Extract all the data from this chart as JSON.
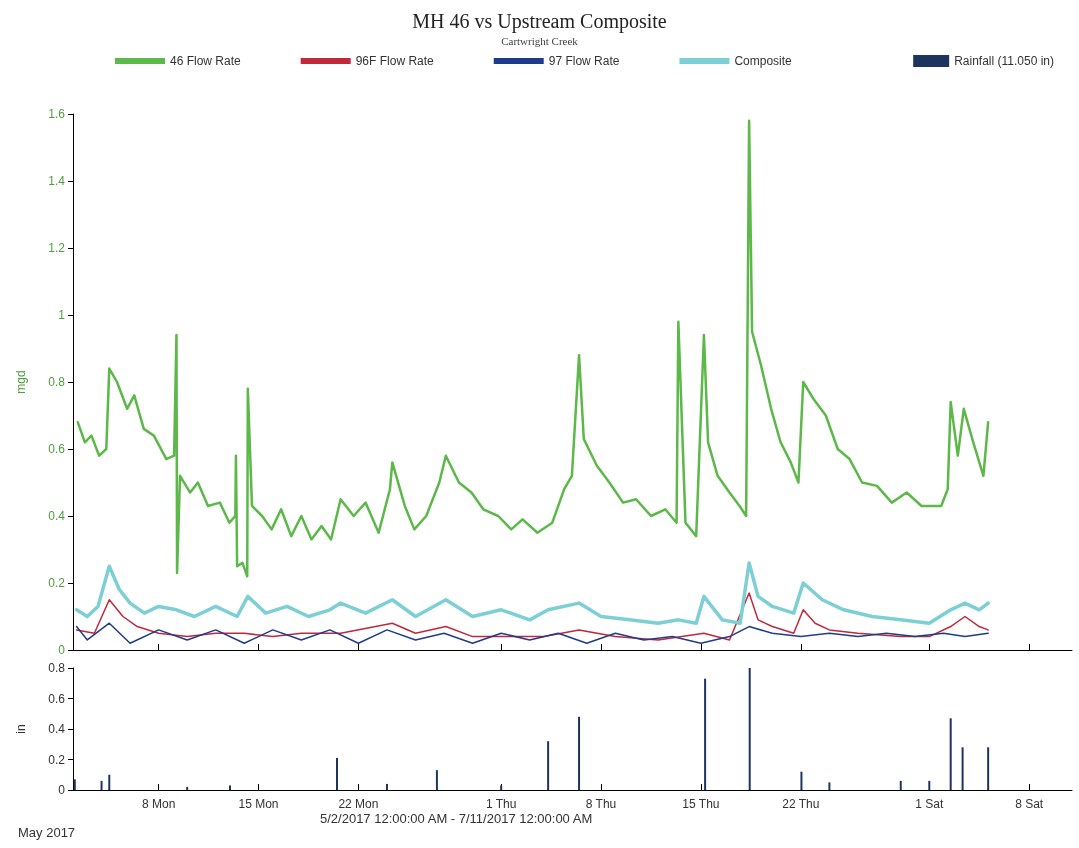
{
  "chart_data": [
    {
      "type": "line",
      "title": "MH 46 vs Upstream Composite",
      "subtitle": "Cartwright Creek",
      "ylabel": "mgd",
      "xlim": [
        "2017-05-02",
        "2017-07-11"
      ],
      "xticks": [
        {
          "value": "2017-05-08",
          "label": null
        },
        {
          "value": "2017-05-15",
          "label": null
        },
        {
          "value": "2017-05-22",
          "label": null
        },
        {
          "value": "2017-06-01",
          "label": null
        },
        {
          "value": "2017-06-08",
          "label": null
        },
        {
          "value": "2017-06-15",
          "label": null
        },
        {
          "value": "2017-06-22",
          "label": null
        },
        {
          "value": "2017-07-01",
          "label": null
        },
        {
          "value": "2017-07-08",
          "label": null
        }
      ],
      "ylim": [
        0,
        1.6
      ],
      "yticks": [
        0,
        0.2,
        0.4,
        0.6,
        0.8,
        1.0,
        1.2,
        1.4,
        1.6
      ],
      "tick_labels": "y",
      "grid": false,
      "legend": "top",
      "marker": "none",
      "line_style": "solid",
      "series": [
        {
          "name": "46 Flow Rate",
          "color": "#5cb848",
          "x": [
            "2017-05-02T08:00",
            "2017-05-02T20:00",
            "2017-05-03T07:00",
            "2017-05-03T20:00",
            "2017-05-04T08:00",
            "2017-05-04T13:00",
            "2017-05-05T02:00",
            "2017-05-05T19:00",
            "2017-05-06T07:00",
            "2017-05-06T23:00",
            "2017-05-07T16:00",
            "2017-05-08T13:00",
            "2017-05-09T02:00",
            "2017-05-09T06:00",
            "2017-05-09T07:00",
            "2017-05-09T12:00",
            "2017-05-10T05:00",
            "2017-05-10T18:00",
            "2017-05-11T11:00",
            "2017-05-12T07:00",
            "2017-05-12T23:00",
            "2017-05-13T09:00",
            "2017-05-13T10:00",
            "2017-05-13T12:00",
            "2017-05-13T21:00",
            "2017-05-14T05:00",
            "2017-05-14T06:00",
            "2017-05-14T13:00",
            "2017-05-15T06:00",
            "2017-05-15T22:00",
            "2017-05-16T14:00",
            "2017-05-17T07:00",
            "2017-05-18T00:00",
            "2017-05-18T17:00",
            "2017-05-19T10:00",
            "2017-05-20T02:00",
            "2017-05-20T18:00",
            "2017-05-21T16:00",
            "2017-05-22T12:00",
            "2017-05-23T10:00",
            "2017-05-24T05:00",
            "2017-05-24T09:00",
            "2017-05-25T06:00",
            "2017-05-25T22:00",
            "2017-05-26T18:00",
            "2017-05-27T16:00",
            "2017-05-28T03:00",
            "2017-05-29T01:00",
            "2017-05-29T22:00",
            "2017-05-30T18:00",
            "2017-05-31T19:00",
            "2017-06-01T17:00",
            "2017-06-02T12:00",
            "2017-06-03T13:00",
            "2017-06-04T14:00",
            "2017-06-05T10:00",
            "2017-06-05T23:00",
            "2017-06-06T11:00",
            "2017-06-06T19:00",
            "2017-06-07T17:00",
            "2017-06-08T14:00",
            "2017-06-09T13:00",
            "2017-06-10T11:00",
            "2017-06-11T12:00",
            "2017-06-12T12:00",
            "2017-06-13T07:00",
            "2017-06-13T10:00",
            "2017-06-13T22:00",
            "2017-06-14T16:00",
            "2017-06-15T05:00",
            "2017-06-15T12:00",
            "2017-06-16T04:00",
            "2017-06-17T00:00",
            "2017-06-17T17:00",
            "2017-06-18T04:00",
            "2017-06-18T09:00",
            "2017-06-18T14:00",
            "2017-06-19T05:00",
            "2017-06-19T22:00",
            "2017-06-20T14:00",
            "2017-06-21T07:00",
            "2017-06-21T20:00",
            "2017-06-22T04:00",
            "2017-06-22T21:00",
            "2017-06-23T18:00",
            "2017-06-24T14:00",
            "2017-06-25T10:00",
            "2017-06-26T07:00",
            "2017-06-27T08:00",
            "2017-06-28T09:00",
            "2017-06-29T10:00",
            "2017-06-30T11:00",
            "2017-07-01T20:00",
            "2017-07-02T07:00",
            "2017-07-02T12:00",
            "2017-07-03T00:00",
            "2017-07-03T10:00",
            "2017-07-04T02:00",
            "2017-07-04T19:00",
            "2017-07-05T03:00"
          ],
          "values": [
            0.68,
            0.62,
            0.64,
            0.58,
            0.6,
            0.84,
            0.8,
            0.72,
            0.76,
            0.66,
            0.64,
            0.57,
            0.58,
            0.94,
            0.23,
            0.52,
            0.47,
            0.5,
            0.43,
            0.44,
            0.38,
            0.4,
            0.58,
            0.25,
            0.26,
            0.22,
            0.78,
            0.43,
            0.4,
            0.36,
            0.42,
            0.34,
            0.4,
            0.33,
            0.37,
            0.33,
            0.45,
            0.4,
            0.44,
            0.35,
            0.48,
            0.56,
            0.43,
            0.36,
            0.4,
            0.5,
            0.58,
            0.5,
            0.47,
            0.42,
            0.4,
            0.36,
            0.39,
            0.35,
            0.38,
            0.48,
            0.52,
            0.88,
            0.63,
            0.55,
            0.5,
            0.44,
            0.45,
            0.4,
            0.42,
            0.38,
            0.98,
            0.38,
            0.34,
            0.94,
            0.62,
            0.52,
            0.47,
            0.43,
            0.4,
            1.58,
            0.95,
            0.85,
            0.72,
            0.62,
            0.56,
            0.5,
            0.8,
            0.75,
            0.7,
            0.6,
            0.57,
            0.5,
            0.49,
            0.44,
            0.47,
            0.43,
            0.43,
            0.48,
            0.74,
            0.58,
            0.72,
            0.62,
            0.52,
            0.68
          ]
        },
        {
          "name": "96F Flow Rate",
          "color": "#c0283c",
          "x": [
            "2017-05-02T06:00",
            "2017-05-03T12:00",
            "2017-05-04T13:00",
            "2017-05-05T12:00",
            "2017-05-06T12:00",
            "2017-05-08T00:00",
            "2017-05-10T00:00",
            "2017-05-12T00:00",
            "2017-05-14T00:00",
            "2017-05-16T00:00",
            "2017-05-18T00:00",
            "2017-05-20T18:00",
            "2017-05-24T09:00",
            "2017-05-26T00:00",
            "2017-05-28T03:00",
            "2017-05-30T00:00",
            "2017-06-01T00:00",
            "2017-06-04T00:00",
            "2017-06-06T11:00",
            "2017-06-09T00:00",
            "2017-06-12T00:00",
            "2017-06-15T05:00",
            "2017-06-17T00:00",
            "2017-06-18T09:00",
            "2017-06-19T00:00",
            "2017-06-20T00:00",
            "2017-06-21T12:00",
            "2017-06-22T04:00",
            "2017-06-23T00:00",
            "2017-06-24T00:00",
            "2017-06-26T00:00",
            "2017-06-29T00:00",
            "2017-07-01T00:00",
            "2017-07-02T12:00",
            "2017-07-03T12:00",
            "2017-07-04T12:00",
            "2017-07-05T03:00"
          ],
          "values": [
            0.06,
            0.05,
            0.15,
            0.1,
            0.07,
            0.05,
            0.04,
            0.05,
            0.05,
            0.04,
            0.05,
            0.05,
            0.08,
            0.05,
            0.07,
            0.04,
            0.04,
            0.04,
            0.06,
            0.04,
            0.03,
            0.05,
            0.03,
            0.17,
            0.09,
            0.07,
            0.05,
            0.12,
            0.08,
            0.06,
            0.05,
            0.04,
            0.04,
            0.07,
            0.1,
            0.07,
            0.06
          ]
        },
        {
          "name": "97 Flow Rate",
          "color": "#1f3c8c",
          "x": [
            "2017-05-02T06:00",
            "2017-05-03T00:00",
            "2017-05-04T13:00",
            "2017-05-06T00:00",
            "2017-05-08T00:00",
            "2017-05-10T00:00",
            "2017-05-12T00:00",
            "2017-05-14T00:00",
            "2017-05-16T00:00",
            "2017-05-18T00:00",
            "2017-05-20T00:00",
            "2017-05-22T00:00",
            "2017-05-24T00:00",
            "2017-05-26T00:00",
            "2017-05-28T00:00",
            "2017-05-30T00:00",
            "2017-06-01T00:00",
            "2017-06-03T00:00",
            "2017-06-05T00:00",
            "2017-06-07T00:00",
            "2017-06-09T00:00",
            "2017-06-11T00:00",
            "2017-06-13T00:00",
            "2017-06-15T00:00",
            "2017-06-17T00:00",
            "2017-06-18T09:00",
            "2017-06-20T00:00",
            "2017-06-22T00:00",
            "2017-06-24T00:00",
            "2017-06-26T00:00",
            "2017-06-28T00:00",
            "2017-06-30T00:00",
            "2017-07-02T00:00",
            "2017-07-03T12:00",
            "2017-07-05T03:00"
          ],
          "values": [
            0.07,
            0.03,
            0.08,
            0.02,
            0.06,
            0.03,
            0.06,
            0.02,
            0.06,
            0.03,
            0.06,
            0.02,
            0.06,
            0.03,
            0.05,
            0.02,
            0.05,
            0.03,
            0.05,
            0.02,
            0.05,
            0.03,
            0.04,
            0.02,
            0.04,
            0.07,
            0.05,
            0.04,
            0.05,
            0.04,
            0.05,
            0.04,
            0.05,
            0.04,
            0.05
          ]
        },
        {
          "name": "Composite",
          "color": "#7ccfd4",
          "x": [
            "2017-05-02T06:00",
            "2017-05-03T00:00",
            "2017-05-03T18:00",
            "2017-05-04T13:00",
            "2017-05-05T06:00",
            "2017-05-06T00:00",
            "2017-05-07T00:00",
            "2017-05-08T00:00",
            "2017-05-09T06:00",
            "2017-05-10T12:00",
            "2017-05-12T00:00",
            "2017-05-13T12:00",
            "2017-05-14T06:00",
            "2017-05-15T12:00",
            "2017-05-17T00:00",
            "2017-05-18T12:00",
            "2017-05-20T00:00",
            "2017-05-20T18:00",
            "2017-05-22T12:00",
            "2017-05-24T09:00",
            "2017-05-26T00:00",
            "2017-05-28T03:00",
            "2017-05-30T00:00",
            "2017-06-01T00:00",
            "2017-06-03T00:00",
            "2017-06-04T07:00",
            "2017-06-06T11:00",
            "2017-06-08T00:00",
            "2017-06-10T00:00",
            "2017-06-12T00:00",
            "2017-06-13T10:00",
            "2017-06-14T16:00",
            "2017-06-15T05:00",
            "2017-06-16T12:00",
            "2017-06-17T18:00",
            "2017-06-18T09:00",
            "2017-06-19T00:00",
            "2017-06-20T00:00",
            "2017-06-21T12:00",
            "2017-06-22T04:00",
            "2017-06-23T12:00",
            "2017-06-25T00:00",
            "2017-06-27T00:00",
            "2017-06-29T00:00",
            "2017-07-01T00:00",
            "2017-07-02T12:00",
            "2017-07-03T12:00",
            "2017-07-04T12:00",
            "2017-07-05T03:00"
          ],
          "values": [
            0.12,
            0.1,
            0.13,
            0.25,
            0.18,
            0.14,
            0.11,
            0.13,
            0.12,
            0.1,
            0.13,
            0.1,
            0.16,
            0.11,
            0.13,
            0.1,
            0.12,
            0.14,
            0.11,
            0.15,
            0.1,
            0.15,
            0.1,
            0.12,
            0.09,
            0.12,
            0.14,
            0.1,
            0.09,
            0.08,
            0.09,
            0.08,
            0.16,
            0.09,
            0.08,
            0.26,
            0.16,
            0.13,
            0.11,
            0.2,
            0.15,
            0.12,
            0.1,
            0.09,
            0.08,
            0.12,
            0.14,
            0.12,
            0.14
          ]
        }
      ]
    },
    {
      "type": "bar",
      "ylabel": "in",
      "xlim": [
        "2017-05-02",
        "2017-07-11"
      ],
      "xticks": [
        {
          "value": "2017-05-08",
          "label": "8 Mon"
        },
        {
          "value": "2017-05-15",
          "label": "15 Mon"
        },
        {
          "value": "2017-05-22",
          "label": "22 Mon"
        },
        {
          "value": "2017-06-01",
          "label": "1 Thu"
        },
        {
          "value": "2017-06-08",
          "label": "8 Thu"
        },
        {
          "value": "2017-06-15",
          "label": "15 Thu"
        },
        {
          "value": "2017-06-22",
          "label": "22 Thu"
        },
        {
          "value": "2017-07-01",
          "label": "1 Sat"
        },
        {
          "value": "2017-07-08",
          "label": "8 Sat"
        }
      ],
      "ylim": [
        0,
        0.8
      ],
      "yticks": [
        0,
        0.2,
        0.4,
        0.6,
        0.8
      ],
      "grid": false,
      "legend": "top right",
      "annotations": [
        "May 2017",
        "5/2/2017 12:00:00 AM - 7/11/2017 12:00:00 AM"
      ],
      "series": [
        {
          "name": "Rainfall (11.050 in)",
          "color": "#1d3461",
          "x": [
            "2017-05-02T03:00",
            "2017-05-04T00:00",
            "2017-05-04T13:00",
            "2017-05-10T00:00",
            "2017-05-13T00:00",
            "2017-05-20T12:00",
            "2017-05-24T00:00",
            "2017-05-27T12:00",
            "2017-06-01T00:00",
            "2017-06-04T07:00",
            "2017-06-06T11:00",
            "2017-06-15T07:00",
            "2017-06-18T10:00",
            "2017-06-22T01:00",
            "2017-06-24T00:00",
            "2017-06-29T00:00",
            "2017-07-01T00:00",
            "2017-07-02T12:00",
            "2017-07-03T08:00",
            "2017-07-05T03:00"
          ],
          "values": [
            0.07,
            0.06,
            0.1,
            0.02,
            0.03,
            0.21,
            0.04,
            0.13,
            0.03,
            0.32,
            0.48,
            0.73,
            0.8,
            0.12,
            0.05,
            0.06,
            0.06,
            0.47,
            0.28,
            0.28
          ]
        }
      ]
    }
  ]
}
